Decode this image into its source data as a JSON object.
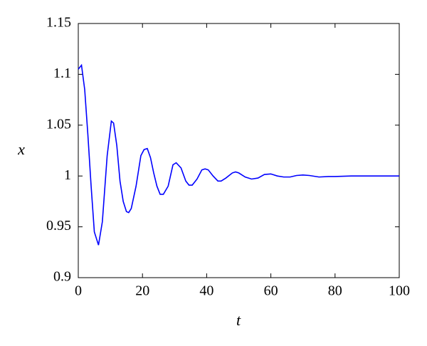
{
  "chart_data": {
    "type": "line",
    "xlabel": "t",
    "ylabel": "x",
    "x": [
      0,
      1,
      2,
      3,
      4,
      5,
      6.3,
      7.5,
      9,
      10.3,
      11,
      12,
      13,
      14,
      15,
      15.7,
      16.5,
      18,
      19.5,
      20.5,
      21.5,
      22.5,
      23.5,
      24.5,
      25.5,
      26.5,
      28,
      29.5,
      30.5,
      32,
      33.5,
      34.5,
      35.5,
      37,
      38.5,
      39.5,
      40.5,
      42,
      43.5,
      44.5,
      46,
      48,
      49,
      50,
      52,
      54,
      56,
      58,
      60,
      62,
      64,
      66,
      68,
      70,
      72,
      75,
      78,
      80,
      85,
      90,
      95,
      100
    ],
    "series": [
      {
        "color": "#0000ff",
        "values": [
          1.105,
          1.109,
          1.085,
          1.04,
          0.99,
          0.945,
          0.932,
          0.955,
          1.02,
          1.054,
          1.052,
          1.03,
          0.995,
          0.975,
          0.965,
          0.964,
          0.968,
          0.99,
          1.02,
          1.026,
          1.027,
          1.018,
          1.003,
          0.99,
          0.982,
          0.982,
          0.99,
          1.011,
          1.013,
          1.008,
          0.995,
          0.991,
          0.991,
          0.997,
          1.006,
          1.007,
          1.006,
          1.0,
          0.995,
          0.995,
          0.998,
          1.003,
          1.004,
          1.003,
          0.999,
          0.997,
          0.998,
          1.0015,
          1.002,
          1.0,
          0.999,
          0.999,
          1.0005,
          1.001,
          1.0005,
          0.999,
          0.9995,
          0.9995,
          1.0,
          1.0,
          1.0,
          1.0
        ]
      }
    ],
    "xlim": [
      0,
      100
    ],
    "ylim": [
      0.9,
      1.15
    ],
    "xticks": [
      0,
      20,
      40,
      60,
      80,
      100
    ],
    "yticks": [
      0.9,
      0.95,
      1,
      1.05,
      1.1,
      1.15
    ]
  }
}
